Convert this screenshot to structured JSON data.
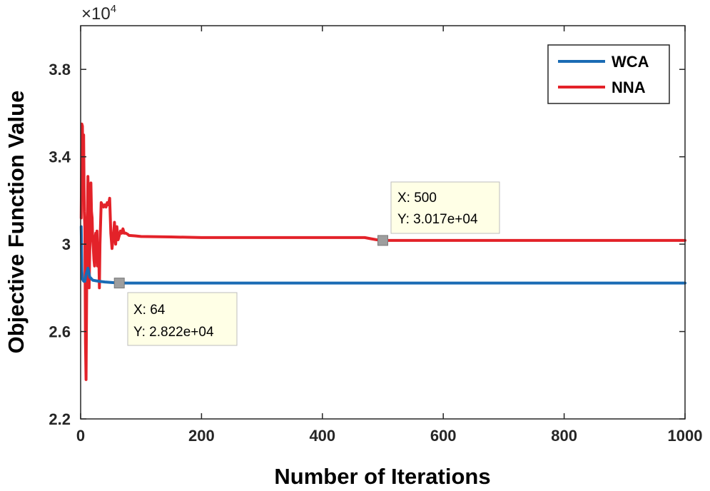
{
  "chart_data": {
    "type": "line",
    "xlabel": "Number of Iterations",
    "ylabel": "Objective Function Value",
    "xlim": [
      0,
      1000
    ],
    "ylim": [
      22000,
      40000
    ],
    "xticks": [
      0,
      200,
      400,
      600,
      800,
      1000
    ],
    "xtick_labels": [
      "0",
      "200",
      "400",
      "600",
      "800",
      "1000"
    ],
    "yticks": [
      22000,
      26000,
      30000,
      34000,
      38000
    ],
    "ytick_labels": [
      "2.2",
      "2.6",
      "3",
      "3.4",
      "3.8"
    ],
    "y_exponent_label": {
      "mantissa": "×10",
      "power": "4"
    },
    "grid": false,
    "legend_position": "top-right",
    "series": [
      {
        "name": "WCA",
        "color": "#1a6bb4",
        "x": [
          1,
          2,
          3,
          4,
          5,
          7,
          9,
          12,
          15,
          20,
          30,
          40,
          50,
          64,
          100,
          200,
          400,
          600,
          800,
          1000
        ],
        "y": [
          30800,
          28800,
          28400,
          28350,
          28300,
          28300,
          28600,
          28900,
          28500,
          28350,
          28300,
          28270,
          28250,
          28220,
          28220,
          28220,
          28220,
          28220,
          28220,
          28220
        ]
      },
      {
        "name": "NNA",
        "color": "#e32229",
        "x": [
          1,
          2,
          3,
          4,
          5,
          6,
          7,
          8,
          9,
          10,
          11,
          12,
          13,
          14,
          15,
          16,
          17,
          18,
          19,
          20,
          21,
          22,
          23,
          24,
          25,
          26,
          27,
          28,
          29,
          30,
          31,
          32,
          33,
          34,
          36,
          38,
          40,
          42,
          44,
          46,
          48,
          50,
          52,
          54,
          56,
          58,
          60,
          62,
          64,
          66,
          68,
          70,
          72,
          75,
          78,
          80,
          90,
          100,
          150,
          200,
          300,
          400,
          470,
          480,
          490,
          500,
          600,
          800,
          1000
        ],
        "y": [
          31200,
          35500,
          35400,
          33000,
          35000,
          31500,
          30800,
          25500,
          23800,
          28000,
          31000,
          33100,
          32000,
          28000,
          29500,
          31000,
          32800,
          31500,
          31200,
          30200,
          29800,
          29300,
          29000,
          30300,
          30500,
          29200,
          30600,
          29000,
          29800,
          29500,
          28000,
          30000,
          31000,
          31900,
          31800,
          31700,
          31800,
          31700,
          31900,
          31800,
          32100,
          30500,
          29800,
          30300,
          31000,
          30000,
          30800,
          30200,
          30400,
          30600,
          30500,
          30700,
          30500,
          30500,
          30450,
          30400,
          30380,
          30350,
          30330,
          30300,
          30300,
          30300,
          30300,
          30250,
          30200,
          30170,
          30170,
          30170,
          30170
        ]
      }
    ]
  },
  "datatips": [
    {
      "x": 500,
      "y": 30170,
      "x_text": "X: 500",
      "y_text": "Y: 3.017e+04"
    },
    {
      "x": 64,
      "y": 28220,
      "x_text": "X: 64",
      "y_text": "Y: 2.822e+04"
    }
  ]
}
